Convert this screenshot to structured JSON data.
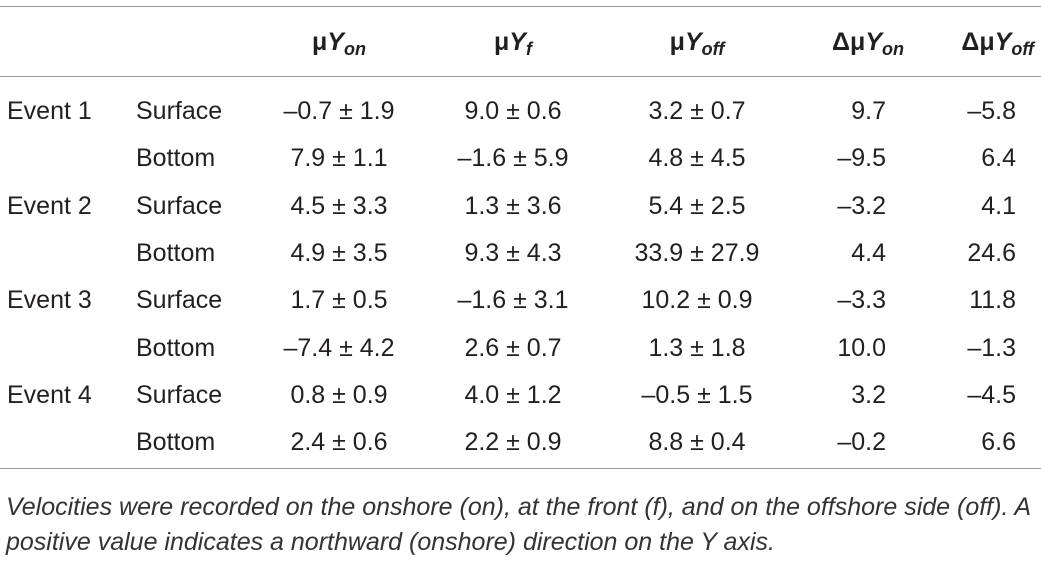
{
  "table": {
    "headers": [
      {
        "prefix": "μ",
        "var": "Y",
        "sub": "on"
      },
      {
        "prefix": "μ",
        "var": "Y",
        "sub": "f"
      },
      {
        "prefix": "μ",
        "var": "Y",
        "sub": "off"
      },
      {
        "prefix": "Δμ",
        "var": "Y",
        "sub": "on"
      },
      {
        "prefix": "Δμ",
        "var": "Y",
        "sub": "off"
      }
    ],
    "rows": [
      {
        "event": "Event 1",
        "location": "Surface",
        "cells": [
          "–0.7 ± 1.9",
          "9.0 ± 0.6",
          "3.2 ± 0.7",
          "9.7",
          "–5.8"
        ]
      },
      {
        "event": "",
        "location": "Bottom",
        "cells": [
          "7.9 ± 1.1",
          "–1.6 ± 5.9",
          "4.8 ± 4.5",
          "–9.5",
          "6.4"
        ]
      },
      {
        "event": "Event 2",
        "location": "Surface",
        "cells": [
          "4.5 ± 3.3",
          "1.3 ± 3.6",
          "5.4 ± 2.5",
          "–3.2",
          "4.1"
        ]
      },
      {
        "event": "",
        "location": "Bottom",
        "cells": [
          "4.9 ± 3.5",
          "9.3 ± 4.3",
          "33.9 ± 27.9",
          "4.4",
          "24.6"
        ]
      },
      {
        "event": "Event 3",
        "location": "Surface",
        "cells": [
          "1.7 ± 0.5",
          "–1.6 ± 3.1",
          "10.2 ± 0.9",
          "–3.3",
          "11.8"
        ]
      },
      {
        "event": "",
        "location": "Bottom",
        "cells": [
          "–7.4 ± 4.2",
          "2.6 ± 0.7",
          "1.3 ± 1.8",
          "10.0",
          "–1.3"
        ]
      },
      {
        "event": "Event 4",
        "location": "Surface",
        "cells": [
          "0.8 ± 0.9",
          "4.0 ± 1.2",
          "–0.5 ± 1.5",
          "3.2",
          "–4.5"
        ]
      },
      {
        "event": "",
        "location": "Bottom",
        "cells": [
          "2.4 ± 0.6",
          "2.2 ± 0.9",
          "8.8 ± 0.4",
          "–0.2",
          "6.6"
        ]
      }
    ]
  },
  "caption": "Velocities were recorded on the onshore (on), at the front (f), and on the offshore side (off). A positive value indicates a northward (onshore) direction on the Y axis."
}
